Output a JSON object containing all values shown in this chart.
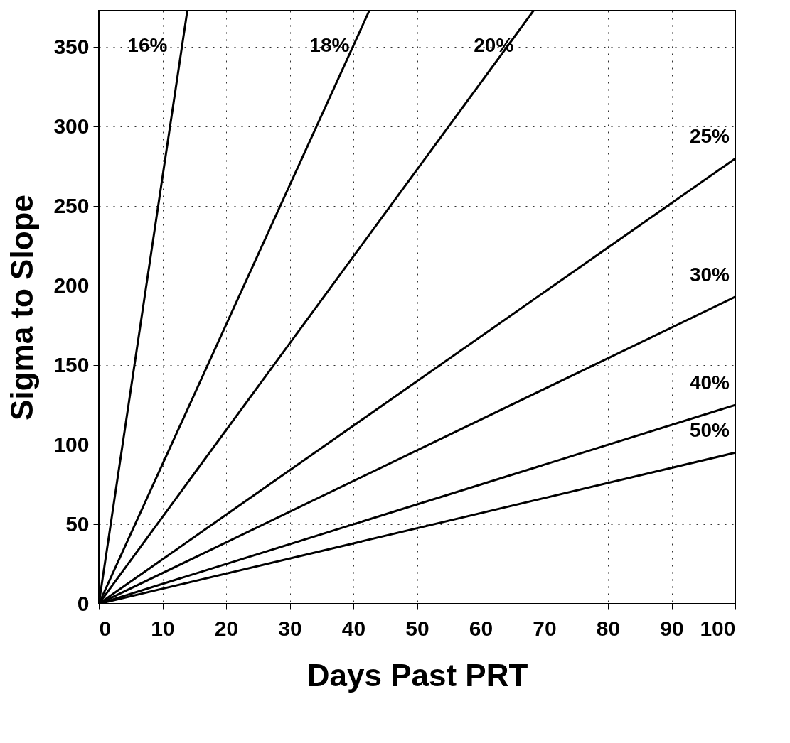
{
  "chart_data": {
    "type": "line",
    "xlabel": "Days Past PRT",
    "ylabel": "Sigma to Slope",
    "xlim": [
      0,
      100
    ],
    "ylim": [
      0,
      373
    ],
    "xticks": [
      0,
      10,
      20,
      30,
      40,
      50,
      60,
      70,
      80,
      90,
      100
    ],
    "yticks": [
      0,
      50,
      100,
      150,
      200,
      250,
      300,
      350
    ],
    "grid": true,
    "line_style": "solid",
    "marker": "none",
    "legend": false,
    "series": [
      {
        "name": "16%",
        "color": "#000000",
        "x": [
          0,
          13.9
        ],
        "values": [
          0,
          373
        ]
      },
      {
        "name": "18%",
        "color": "#000000",
        "x": [
          0,
          42.5
        ],
        "values": [
          0,
          373
        ]
      },
      {
        "name": "20%",
        "color": "#000000",
        "x": [
          0,
          68.3
        ],
        "values": [
          0,
          373
        ]
      },
      {
        "name": "25%",
        "color": "#000000",
        "x": [
          0,
          100
        ],
        "values": [
          0,
          280
        ]
      },
      {
        "name": "30%",
        "color": "#000000",
        "x": [
          0,
          100
        ],
        "values": [
          0,
          193
        ]
      },
      {
        "name": "40%",
        "color": "#000000",
        "x": [
          0,
          100
        ],
        "values": [
          0,
          125
        ]
      },
      {
        "name": "50%",
        "color": "#000000",
        "x": [
          0,
          100
        ],
        "values": [
          0,
          95
        ]
      }
    ]
  }
}
